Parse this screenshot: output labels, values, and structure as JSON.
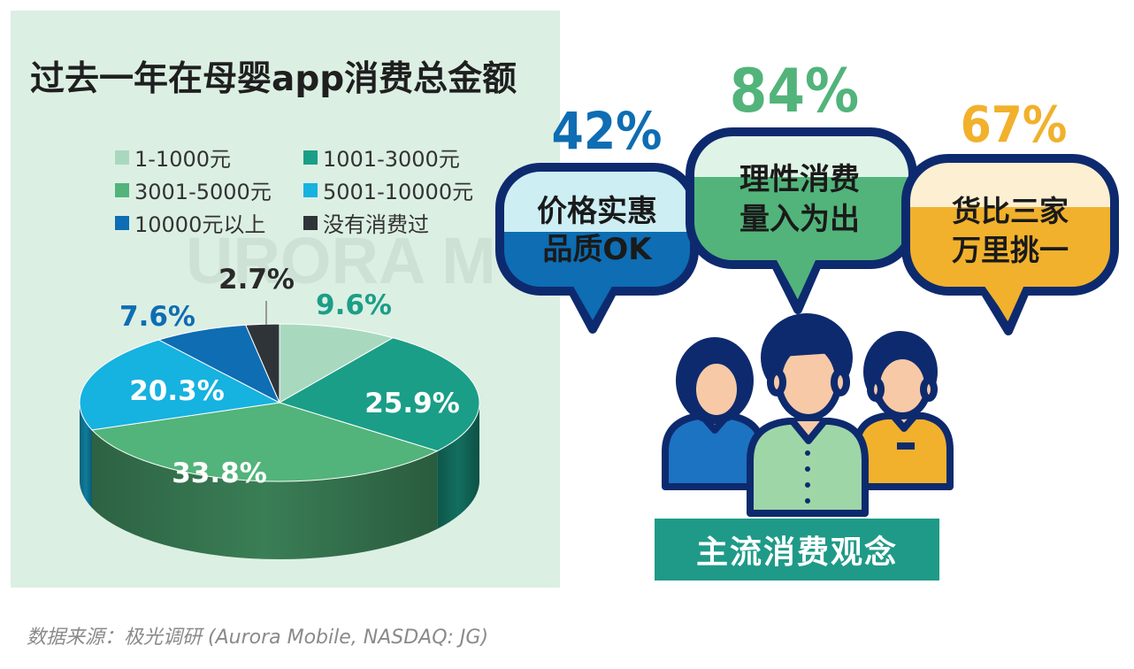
{
  "chart_data": {
    "type": "pie",
    "title": "过去一年在母婴app消费总金额",
    "categories": [
      "1-1000元",
      "1001-3000元",
      "3001-5000元",
      "5001-10000元",
      "10000元以上",
      "没有消费过"
    ],
    "values": [
      9.6,
      25.9,
      33.8,
      20.3,
      7.6,
      2.7
    ],
    "data_labels": [
      "9.6%",
      "25.9%",
      "33.8%",
      "20.3%",
      "7.6%",
      "2.7%"
    ],
    "colors": [
      "#a8d9bf",
      "#1a9e87",
      "#52b47a",
      "#16b2e0",
      "#0e6db3",
      "#2f3438"
    ],
    "legend_position": "top"
  },
  "watermark": "URORA MOBILE",
  "concepts": {
    "percentages": [
      "42%",
      "84%",
      "67%"
    ],
    "bubble1": {
      "line1": "价格实惠",
      "line2": "品质OK"
    },
    "bubble2": {
      "line1": "理性消费",
      "line2": "量入为出"
    },
    "bubble3": {
      "line1": "货比三家",
      "line2": "万里挑一"
    },
    "values": [
      0.42,
      0.84,
      0.67
    ],
    "colors": {
      "bubble1": "#0e6db3",
      "bubble2": "#52b47a",
      "bubble3": "#f1b12c",
      "outline": "#0e2a6e",
      "banner": "#1f9a88"
    },
    "banner": "主流消费观念"
  },
  "source": "数据来源：极光调研 (Aurora Mobile, NASDAQ: JG)"
}
